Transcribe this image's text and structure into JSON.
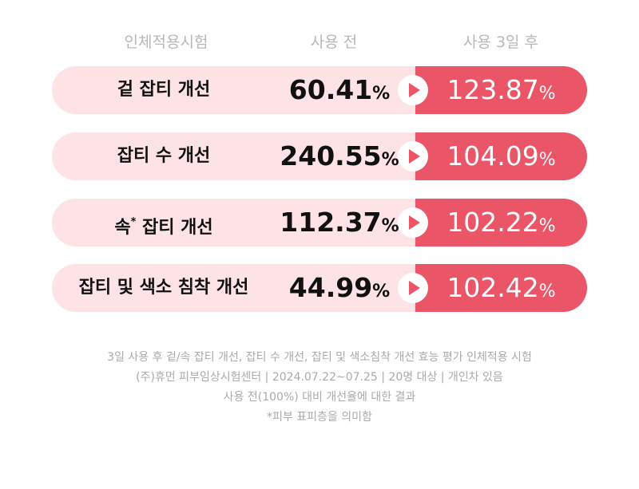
{
  "header": {
    "col1": "인체적용시험",
    "col2": "사용 전",
    "col3": "사용 3일 후"
  },
  "rows": [
    {
      "label": "겉 잡티 개선",
      "before": "60.41",
      "before_unit": "%",
      "after": "123.87",
      "after_unit": "%"
    },
    {
      "label": "잡티 수 개선",
      "before": "240.55",
      "before_unit": "%",
      "after": "104.09",
      "after_unit": "%"
    },
    {
      "label": "속",
      "label_mark": "*",
      "label_rest": "잡티 개선",
      "before": "112.37",
      "before_unit": "%",
      "after": "102.22",
      "after_unit": "%"
    },
    {
      "label": "잡티 및 색소 침착 개선",
      "before": "44.99",
      "before_unit": "%",
      "after": "102.42",
      "after_unit": "%"
    }
  ],
  "notes": [
    "3일 사용 후 겉/속 잡티 개선, 잡티 수 개선, 잡티 및 색소침착 개선 효능 평가 인체적용 시험",
    "(주)휴먼 피부임상시험센터 | 2024.07.22~07.25 | 20명 대상 | 개인차 있음",
    "사용 전(100%) 대비 개선율에 대한 결과",
    "*피부 표피층을 의미함"
  ]
}
